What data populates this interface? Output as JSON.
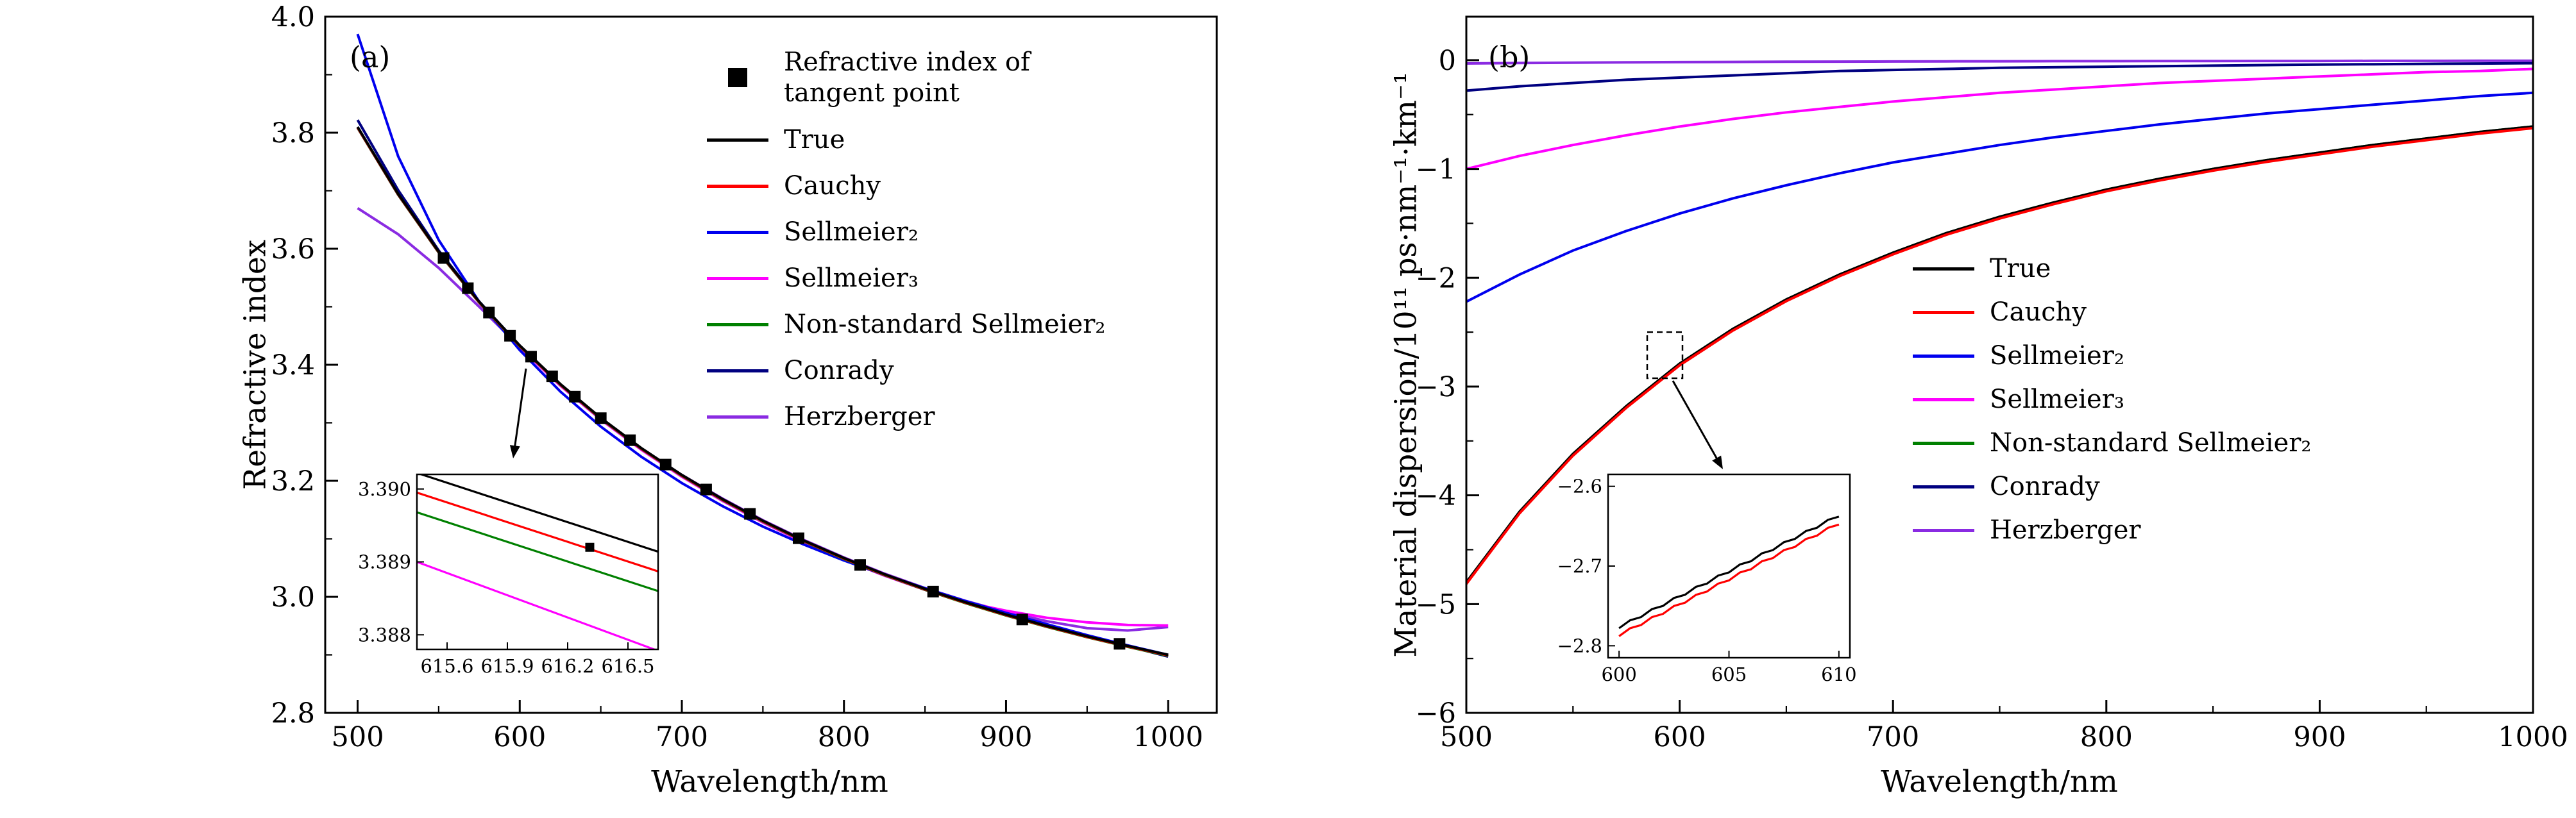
{
  "chart_data": [
    {
      "type": "line",
      "tag": "(a)",
      "xlabel": "Wavelength/nm",
      "ylabel": "Refractive index",
      "xlim": [
        480,
        1030
      ],
      "ylim": [
        2.8,
        4.0
      ],
      "xticks": [
        500,
        600,
        700,
        800,
        900,
        1000
      ],
      "xticklabels": [
        "500",
        "600",
        "700",
        "800",
        "900",
        "1000"
      ],
      "yticks": [
        2.8,
        3.0,
        3.2,
        3.4,
        3.6,
        3.8,
        4.0
      ],
      "yticklabels": [
        "2.8",
        "3.0",
        "3.2",
        "3.4",
        "3.6",
        "3.8",
        "4.0"
      ],
      "xminor": [
        550,
        650,
        750,
        850,
        950
      ],
      "yminor": [
        2.9,
        3.1,
        3.3,
        3.5,
        3.7,
        3.9
      ],
      "grid": false,
      "legend_position": "upper-center-right-inside",
      "x": [
        500,
        525,
        550,
        575,
        600,
        625,
        650,
        675,
        700,
        725,
        750,
        775,
        800,
        825,
        850,
        875,
        900,
        925,
        950,
        975,
        1000
      ],
      "series": [
        {
          "name": "True",
          "color": "#000000",
          "values": [
            3.81,
            3.6945,
            3.595,
            3.5086,
            3.4332,
            3.3669,
            3.3084,
            3.2564,
            3.21,
            3.1685,
            3.1311,
            3.0974,
            3.0668,
            3.039,
            3.0137,
            2.9906,
            2.9694,
            2.9499,
            2.9319,
            2.9154,
            2.9
          ]
        },
        {
          "name": "Cauchy",
          "color": "#ff0000",
          "values": [
            3.8092,
            3.6937,
            3.5942,
            3.5078,
            3.4324,
            3.3661,
            3.3076,
            3.2556,
            3.2092,
            3.1677,
            3.1303,
            3.0966,
            3.066,
            3.0382,
            3.0129,
            2.9898,
            2.9686,
            2.9491,
            2.9311,
            2.9146,
            2.8992
          ]
        },
        {
          "name": "Sellmeier₂",
          "color": "#0000ee",
          "values": [
            3.97,
            3.7595,
            3.615,
            3.5086,
            3.4252,
            3.3539,
            3.2934,
            3.2414,
            3.196,
            3.1565,
            3.1211,
            3.0904,
            3.0628,
            3.038,
            3.0147,
            2.9926,
            2.9724,
            2.9529,
            2.9339,
            2.9164,
            2.9
          ]
        },
        {
          "name": "Sellmeier₃",
          "color": "#ff00ff",
          "values": [
            3.8085,
            3.693,
            3.5935,
            3.507,
            3.4302,
            3.364,
            3.3055,
            3.2535,
            3.207,
            3.1655,
            3.1281,
            3.0944,
            3.064,
            3.0365,
            3.012,
            2.9905,
            2.976,
            2.964,
            2.956,
            2.9515,
            2.9505
          ]
        },
        {
          "name": "Non-standard Sellmeier₂",
          "color": "#008000",
          "values": [
            3.8085,
            3.693,
            3.5935,
            3.5071,
            3.4317,
            3.3654,
            3.3069,
            3.2549,
            3.2085,
            3.167,
            3.1296,
            3.0959,
            3.0653,
            3.0375,
            3.0122,
            2.9891,
            2.9679,
            2.9484,
            2.9304,
            2.9139,
            2.8985
          ]
        },
        {
          "name": "Conrady",
          "color": "#000080",
          "values": [
            3.822,
            3.701,
            3.597,
            3.509,
            3.433,
            3.3665,
            3.308,
            3.256,
            3.2095,
            3.168,
            3.1306,
            3.0969,
            3.0663,
            3.0385,
            3.0132,
            2.9901,
            2.9689,
            2.9494,
            2.9314,
            2.9149,
            2.897
          ]
        },
        {
          "name": "Herzberger",
          "color": "#8a2be2",
          "values": [
            3.67,
            3.625,
            3.567,
            3.5,
            3.431,
            3.366,
            3.308,
            3.256,
            3.21,
            3.1695,
            3.132,
            3.0985,
            3.0678,
            3.04,
            3.015,
            2.993,
            2.974,
            2.958,
            2.946,
            2.942,
            2.948
          ]
        }
      ],
      "scatter": {
        "name": "Refractive index of\ntangent point",
        "color": "#000000",
        "marker": "square",
        "x": [
          553,
          568,
          581,
          594,
          607,
          620,
          634,
          650,
          668,
          690,
          715,
          742,
          772,
          810,
          855,
          910,
          970
        ],
        "y": [
          3.584,
          3.532,
          3.49,
          3.45,
          3.414,
          3.38,
          3.345,
          3.308,
          3.27,
          3.228,
          3.185,
          3.143,
          3.101,
          3.055,
          3.009,
          2.961,
          2.919
        ]
      },
      "inset": {
        "xlim": [
          615.45,
          616.65
        ],
        "ylim": [
          3.3878,
          3.3902
        ],
        "xticks": [
          615.6,
          615.9,
          616.2,
          616.5
        ],
        "xticklabels": [
          "615.6",
          "615.9",
          "616.2",
          "616.5"
        ],
        "yticks": [
          3.388,
          3.389,
          3.39
        ],
        "yticklabels": [
          "3.388",
          "3.389",
          "3.390"
        ],
        "lines": [
          {
            "name": "True",
            "color": "#000000",
            "x": [
              615.45,
              616.65
            ],
            "y": [
              3.39022,
              3.38914
            ]
          },
          {
            "name": "Cauchy",
            "color": "#ff0000",
            "x": [
              615.45,
              616.65
            ],
            "y": [
              3.38995,
              3.38887
            ]
          },
          {
            "name": "Non-standard Sellmeier₂",
            "color": "#008000",
            "x": [
              615.45,
              616.65
            ],
            "y": [
              3.38968,
              3.3886
            ]
          },
          {
            "name": "Sellmeier₃",
            "color": "#ff00ff",
            "x": [
              615.45,
              616.65
            ],
            "y": [
              3.389,
              3.38778
            ]
          }
        ],
        "point": {
          "x": 616.31,
          "y": 3.3892,
          "color": "#000000"
        }
      }
    },
    {
      "type": "line",
      "tag": "(b)",
      "xlabel": "Wavelength/nm",
      "ylabel": "Material dispersion/10¹¹ ps·nm⁻¹·km⁻¹",
      "xlim": [
        500,
        1000
      ],
      "ylim": [
        -6,
        0.4
      ],
      "xticks": [
        500,
        600,
        700,
        800,
        900,
        1000
      ],
      "xticklabels": [
        "500",
        "600",
        "700",
        "800",
        "900",
        "1000"
      ],
      "yticks": [
        0,
        -1,
        -2,
        -3,
        -4,
        -5,
        -6
      ],
      "yticklabels": [
        "0",
        "−1",
        "−2",
        "−3",
        "−4",
        "−5",
        "−6"
      ],
      "xminor": [
        550,
        650,
        750,
        850,
        950
      ],
      "yminor": [
        -0.5,
        -1.5,
        -2.5,
        -3.5,
        -4.5,
        -5.5
      ],
      "grid": false,
      "legend_position": "middle-right-inside",
      "x": [
        500,
        525,
        550,
        575,
        600,
        625,
        650,
        675,
        700,
        725,
        750,
        775,
        800,
        825,
        850,
        875,
        900,
        925,
        950,
        975,
        1000
      ],
      "series": [
        {
          "name": "True",
          "color": "#000000",
          "values": [
            -4.8,
            -4.15,
            -3.62,
            -3.18,
            -2.79,
            -2.47,
            -2.2,
            -1.97,
            -1.77,
            -1.59,
            -1.44,
            -1.31,
            -1.19,
            -1.09,
            -1.0,
            -0.92,
            -0.85,
            -0.78,
            -0.72,
            -0.66,
            -0.61
          ]
        },
        {
          "name": "Cauchy",
          "color": "#ff0000",
          "values": [
            -4.815,
            -4.165,
            -3.635,
            -3.195,
            -2.805,
            -2.485,
            -2.215,
            -1.985,
            -1.785,
            -1.605,
            -1.455,
            -1.325,
            -1.205,
            -1.105,
            -1.015,
            -0.935,
            -0.865,
            -0.795,
            -0.735,
            -0.675,
            -0.625
          ]
        },
        {
          "name": "Sellmeier₂",
          "color": "#0000ee",
          "values": [
            -2.22,
            -1.97,
            -1.75,
            -1.57,
            -1.41,
            -1.27,
            -1.15,
            -1.04,
            -0.94,
            -0.86,
            -0.78,
            -0.71,
            -0.65,
            -0.59,
            -0.54,
            -0.49,
            -0.45,
            -0.41,
            -0.37,
            -0.33,
            -0.3
          ]
        },
        {
          "name": "Sellmeier₃",
          "color": "#ff00ff",
          "values": [
            -1.0,
            -0.88,
            -0.78,
            -0.69,
            -0.61,
            -0.54,
            -0.48,
            -0.43,
            -0.38,
            -0.34,
            -0.3,
            -0.27,
            -0.24,
            -0.21,
            -0.19,
            -0.17,
            -0.15,
            -0.13,
            -0.11,
            -0.1,
            -0.08
          ]
        },
        {
          "name": "Non-standard Sellmeier₂",
          "color": "#008000",
          "values": [
            -4.8,
            -4.15,
            -3.62,
            -3.18,
            -2.79,
            -2.47,
            -2.2,
            -1.97,
            -1.77,
            -1.59,
            -1.44,
            -1.31,
            -1.19,
            -1.09,
            -1.0,
            -0.92,
            -0.85,
            -0.78,
            -0.72,
            -0.66,
            -0.61
          ]
        },
        {
          "name": "Conrady",
          "color": "#000080",
          "values": [
            -0.28,
            -0.24,
            -0.21,
            -0.18,
            -0.16,
            -0.14,
            -0.12,
            -0.1,
            -0.09,
            -0.08,
            -0.07,
            -0.065,
            -0.06,
            -0.055,
            -0.05,
            -0.045,
            -0.04,
            -0.037,
            -0.034,
            -0.031,
            -0.028
          ]
        },
        {
          "name": "Herzberger",
          "color": "#8a2be2",
          "values": [
            -0.03,
            -0.026,
            -0.023,
            -0.02,
            -0.018,
            -0.016,
            -0.014,
            -0.013,
            -0.012,
            -0.011,
            -0.01,
            -0.009,
            -0.009,
            -0.008,
            -0.008,
            -0.007,
            -0.007,
            -0.006,
            -0.006,
            -0.005,
            -0.005
          ]
        }
      ],
      "inset": {
        "xlim": [
          599.5,
          610.5
        ],
        "ylim": [
          -2.815,
          -2.585
        ],
        "xticks": [
          600,
          605,
          610
        ],
        "xticklabels": [
          "600",
          "605",
          "610"
        ],
        "yticks": [
          -2.6,
          -2.7,
          -2.8
        ],
        "yticklabels": [
          "−2.6",
          "−2.7",
          "−2.8"
        ],
        "lines": [
          {
            "name": "True",
            "color": "#000000",
            "x": [
              600,
              600.5,
              601,
              601.5,
              602,
              602.5,
              603,
              603.5,
              604,
              604.5,
              605,
              605.5,
              606,
              606.5,
              607,
              607.5,
              608,
              608.5,
              609,
              609.5,
              610
            ],
            "y": [
              -2.778,
              -2.768,
              -2.764,
              -2.754,
              -2.75,
              -2.74,
              -2.736,
              -2.726,
              -2.722,
              -2.712,
              -2.708,
              -2.698,
              -2.694,
              -2.684,
              -2.68,
              -2.67,
              -2.666,
              -2.656,
              -2.652,
              -2.642,
              -2.638
            ]
          },
          {
            "name": "Cauchy",
            "color": "#ff0000",
            "x": [
              600,
              600.5,
              601,
              601.5,
              602,
              602.5,
              603,
              603.5,
              604,
              604.5,
              605,
              605.5,
              606,
              606.5,
              607,
              607.5,
              608,
              608.5,
              609,
              609.5,
              610
            ],
            "y": [
              -2.788,
              -2.778,
              -2.774,
              -2.764,
              -2.76,
              -2.75,
              -2.746,
              -2.736,
              -2.732,
              -2.722,
              -2.718,
              -2.708,
              -2.704,
              -2.694,
              -2.69,
              -2.68,
              -2.676,
              -2.666,
              -2.662,
              -2.652,
              -2.648
            ]
          }
        ]
      }
    }
  ]
}
